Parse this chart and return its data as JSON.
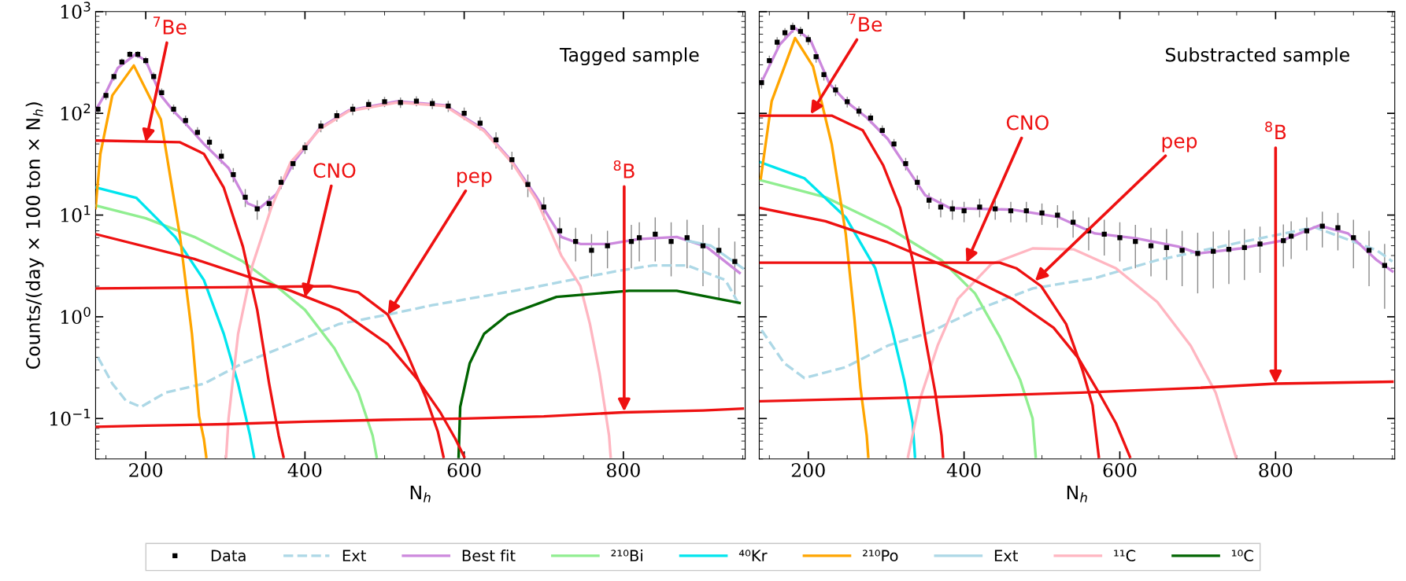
{
  "chart_data": [
    {
      "type": "line",
      "log": "y",
      "xlim": [
        137,
        953
      ],
      "ylim": [
        0.04,
        1000
      ],
      "xticks": [
        200,
        400,
        600,
        800
      ],
      "yticks": [
        {
          "value": 0.1,
          "label": "10$^{−1}$"
        },
        {
          "value": 1,
          "label": "10$^{0}$"
        },
        {
          "value": 10,
          "label": "10$^{1}$"
        },
        {
          "value": 100,
          "label": "10$^{2}$"
        },
        {
          "value": 1000,
          "label": "10$^{3}$"
        }
      ],
      "xlabel": "N$_{h}$",
      "ylabel": "Counts/(day × 100 ton × N$_{h}$)",
      "legend": "bottom",
      "annotations": [
        "Tagged sample",
        {
          "text": "$^{7}$Be",
          "x": 200,
          "y": 52
        },
        {
          "text": "CNO",
          "x": 400,
          "y": 1.55
        },
        {
          "text": "pep",
          "x": 504,
          "y": 1.05
        },
        {
          "text": "$^{8}$B",
          "x": 801,
          "y": 0.117
        }
      ],
      "series": [
        {
          "name": "Data",
          "type": "scatter",
          "marker": "square",
          "color": "#000000",
          "x": [
            140,
            150,
            160,
            170,
            180,
            190,
            200,
            210,
            220,
            235,
            250,
            265,
            280,
            295,
            310,
            325,
            340,
            355,
            370,
            385,
            400,
            420,
            440,
            460,
            480,
            500,
            520,
            540,
            560,
            580,
            600,
            620,
            640,
            660,
            680,
            700,
            720,
            740,
            760,
            780,
            810,
            820,
            840,
            860,
            880,
            900,
            920,
            940
          ],
          "values": [
            110,
            150,
            230,
            320,
            380,
            380,
            330,
            230,
            160,
            110,
            85,
            65,
            52,
            38,
            25,
            15,
            11.5,
            13,
            21,
            32,
            46,
            75,
            95,
            110,
            122,
            130,
            128,
            132,
            125,
            118,
            100,
            80,
            55,
            35,
            20,
            12,
            7,
            5.5,
            4.5,
            5,
            5.5,
            6,
            6.5,
            5.5,
            6,
            5,
            4.5,
            3.5
          ],
          "errors": [
            12,
            15,
            20,
            25,
            30,
            30,
            28,
            22,
            16,
            12,
            10,
            8,
            7,
            6,
            4,
            3,
            2.5,
            2.5,
            3,
            4,
            6,
            10,
            12,
            14,
            15,
            15,
            15,
            15,
            15,
            15,
            14,
            12,
            10,
            7,
            5,
            3,
            2.5,
            2,
            2,
            2,
            2.5,
            2.5,
            3,
            3,
            3,
            3,
            3,
            2
          ]
        },
        {
          "name": "Ext",
          "color": "#add8e6",
          "line_style": "dashed",
          "x": [
            140,
            158,
            175,
            194,
            225,
            273,
            322,
            382,
            443,
            504,
            560,
            625,
            680,
            734,
            790,
            837,
            880,
            928,
            946
          ],
          "values": [
            0.4,
            0.22,
            0.15,
            0.13,
            0.18,
            0.22,
            0.35,
            0.54,
            0.85,
            1.05,
            1.3,
            1.6,
            1.9,
            2.3,
            2.8,
            3.2,
            3.2,
            2.3,
            1.3
          ]
        },
        {
          "name": "Best fit",
          "color": "#cc88dd",
          "x": [
            137,
            150,
            165,
            187,
            200,
            219,
            235,
            249,
            273,
            304,
            328,
            343,
            364,
            388,
            419,
            455,
            516,
            576,
            625,
            661,
            691,
            722,
            746,
            782,
            819,
            867,
            904,
            946
          ],
          "values": [
            107,
            160,
            280,
            380,
            330,
            150,
            105,
            81,
            50,
            29,
            13,
            11.7,
            16,
            35,
            72,
            107,
            131,
            120,
            69,
            33,
            15,
            6.1,
            5.2,
            5.2,
            5.8,
            6.1,
            4.9,
            2.7
          ]
        },
        {
          "name": "²¹⁰Bi",
          "color": "#90ee90",
          "x": [
            137,
            200,
            261,
            322,
            364,
            400,
            437,
            467,
            485,
            490
          ],
          "values": [
            12.4,
            9.3,
            6.1,
            3.5,
            2.0,
            1.17,
            0.49,
            0.18,
            0.068,
            0.042
          ]
        },
        {
          "name": "⁴⁰Kr",
          "color": "#00e5ee",
          "x": [
            137,
            188,
            237,
            273,
            298,
            316,
            331,
            336
          ],
          "values": [
            18.7,
            14.8,
            6.1,
            2.3,
            0.68,
            0.22,
            0.068,
            0.042
          ]
        },
        {
          "name": "²¹⁰Po",
          "color": "#ffa500",
          "x": [
            137,
            143,
            158,
            185,
            219,
            243,
            258,
            267,
            273,
            276
          ],
          "values": [
            11.7,
            40,
            150,
            295,
            87,
            6.2,
            0.68,
            0.105,
            0.063,
            0.042
          ]
        },
        {
          "name": "Ext",
          "color": "#add8e6",
          "x": [
            880,
            910,
            950
          ],
          "values": [
            5.6,
            5.0,
            3.0
          ]
        },
        {
          "name": "¹¹C",
          "color": "#ffb6c1",
          "x": [
            301,
            304,
            316,
            334,
            358,
            382,
            419,
            455,
            516,
            576,
            625,
            661,
            691,
            722,
            746,
            758,
            770,
            782,
            784
          ],
          "values": [
            0.042,
            0.1,
            0.68,
            3.2,
            12,
            33,
            70,
            105,
            128,
            118,
            67,
            32,
            14,
            4,
            2,
            0.85,
            0.28,
            0.068,
            0.042
          ]
        },
        {
          "name": "¹⁰C",
          "color": "#006400",
          "x": [
            593,
            595,
            607,
            625,
            655,
            716,
            807,
            867,
            946
          ],
          "values": [
            0.042,
            0.13,
            0.35,
            0.68,
            1.05,
            1.57,
            1.8,
            1.8,
            1.37
          ]
        },
        {
          "color": "#ee1111",
          "x": [
            137,
            243,
            273,
            298,
            322,
            340,
            355,
            367,
            373
          ],
          "values": [
            54,
            52,
            40,
            18.6,
            4.9,
            1.17,
            0.22,
            0.068,
            0.042
          ]
        },
        {
          "color": "#ee1111",
          "x": [
            137,
            261,
            382,
            443,
            504,
            540,
            570,
            589,
            600
          ],
          "values": [
            6.5,
            3.7,
            1.8,
            1.17,
            0.54,
            0.25,
            0.115,
            0.063,
            0.042
          ]
        },
        {
          "color": "#ee1111",
          "x": [
            137,
            300,
            431,
            467,
            504,
            528,
            552,
            567,
            574
          ],
          "values": [
            1.9,
            1.95,
            2.0,
            1.74,
            1.05,
            0.44,
            0.16,
            0.074,
            0.042
          ]
        },
        {
          "color": "#ee1111",
          "x": [
            137,
            200,
            300,
            400,
            500,
            600,
            700,
            800,
            900,
            950
          ],
          "values": [
            0.083,
            0.085,
            0.088,
            0.093,
            0.097,
            0.1,
            0.105,
            0.115,
            0.12,
            0.125
          ]
        }
      ]
    },
    {
      "type": "line",
      "log": "y",
      "xlim": [
        137,
        953
      ],
      "ylim": [
        0.04,
        1000
      ],
      "xticks": [
        200,
        400,
        600,
        800
      ],
      "yticks": [
        0.1,
        1,
        10,
        100,
        1000
      ],
      "tick_labels": "x",
      "xlabel": "N$_{h}$",
      "annotations": [
        "Substracted sample",
        {
          "text": "$^{7}$Be",
          "x": 203,
          "y": 98
        },
        {
          "text": "CNO",
          "x": 403,
          "y": 3.4
        },
        {
          "text": "pep",
          "x": 491,
          "y": 2.25
        },
        {
          "text": "$^{8}$B",
          "x": 800,
          "y": 0.22
        }
      ],
      "series": [
        {
          "type": "scatter",
          "marker": "square",
          "color": "#000000",
          "x": [
            140,
            150,
            160,
            170,
            180,
            190,
            200,
            210,
            220,
            235,
            250,
            265,
            280,
            295,
            310,
            325,
            340,
            355,
            370,
            385,
            400,
            420,
            440,
            460,
            480,
            500,
            520,
            540,
            560,
            580,
            600,
            620,
            640,
            660,
            680,
            700,
            720,
            740,
            760,
            780,
            810,
            820,
            840,
            860,
            880,
            900,
            920,
            940
          ],
          "values": [
            200,
            330,
            500,
            620,
            700,
            640,
            530,
            360,
            240,
            170,
            130,
            105,
            90,
            68,
            50,
            32,
            21,
            14,
            12,
            11.5,
            11,
            12,
            11.5,
            11,
            11,
            10.5,
            10,
            8.5,
            7,
            6.5,
            6,
            5.5,
            5,
            4.8,
            4.5,
            4.2,
            4.4,
            4.6,
            4.8,
            5.2,
            5.6,
            6.2,
            7,
            7.8,
            7.5,
            6,
            4.5,
            3.2
          ],
          "errors": [
            25,
            40,
            60,
            70,
            80,
            70,
            60,
            45,
            30,
            22,
            16,
            12,
            10,
            8,
            6,
            4.5,
            3.5,
            2.5,
            2.5,
            2.5,
            2.5,
            2.5,
            2.5,
            2.5,
            2.5,
            2.5,
            2.5,
            2.5,
            2.5,
            2.5,
            2.5,
            2.5,
            2.5,
            2.5,
            2.5,
            2.5,
            2.5,
            2.5,
            2.5,
            2.5,
            2.5,
            2.5,
            2.5,
            3,
            3,
            3,
            2.5,
            2
          ]
        },
        {
          "color": "#add8e6",
          "line_style": "dashed",
          "x": [
            140,
            169,
            195,
            248,
            302,
            355,
            414,
            488,
            568,
            648,
            755,
            850,
            930,
            950
          ],
          "values": [
            0.74,
            0.35,
            0.25,
            0.32,
            0.52,
            0.7,
            1.15,
            1.9,
            2.4,
            3.6,
            5.4,
            7.6,
            4.5,
            3.5
          ]
        },
        {
          "color": "#cc88dd",
          "x": [
            139,
            163,
            183,
            203,
            227,
            248,
            275,
            302,
            328,
            350,
            382,
            462,
            520,
            568,
            621,
            675,
            701,
            755,
            808,
            856,
            893,
            930,
            950
          ],
          "values": [
            196,
            470,
            690,
            520,
            196,
            132,
            91,
            56,
            28,
            15.7,
            11.7,
            11.3,
            9.6,
            6.6,
            5.9,
            4.9,
            4.2,
            4.7,
            5.6,
            7.9,
            6.6,
            3.6,
            2.8
          ]
        },
        {
          "color": "#90ee90",
          "x": [
            139,
            222,
            302,
            371,
            414,
            446,
            472,
            488,
            492
          ],
          "values": [
            22,
            15,
            7.6,
            3.6,
            1.7,
            0.63,
            0.24,
            0.1,
            0.042
          ]
        },
        {
          "color": "#00e5ee",
          "x": [
            139,
            195,
            248,
            286,
            307,
            323,
            334,
            337
          ],
          "values": [
            33,
            23,
            9.5,
            3.0,
            0.78,
            0.24,
            0.09,
            0.042
          ]
        },
        {
          "color": "#ffa500",
          "x": [
            139,
            153,
            183,
            206,
            230,
            248,
            259,
            267,
            275,
            277
          ],
          "values": [
            23,
            132,
            550,
            290,
            50,
            6.6,
            1.0,
            0.2,
            0.068,
            0.042
          ]
        },
        {
          "color": "#ffb6c1",
          "x": [
            328,
            344,
            366,
            392,
            435,
            488,
            541,
            595,
            648,
            691,
            723,
            749
          ],
          "values": [
            0.042,
            0.16,
            0.52,
            1.5,
            3.3,
            4.7,
            4.6,
            3.0,
            1.4,
            0.52,
            0.18,
            0.042
          ]
        },
        {
          "color": "#ee1111",
          "x": [
            139,
            230,
            270,
            296,
            318,
            334,
            350,
            363,
            371,
            373
          ],
          "values": [
            95,
            95,
            68,
            31,
            11.7,
            3.6,
            0.63,
            0.18,
            0.068,
            0.042
          ]
        },
        {
          "color": "#ee1111",
          "x": [
            139,
            222,
            302,
            382,
            462,
            515,
            547,
            573,
            595,
            613
          ],
          "values": [
            11.7,
            8.7,
            5.4,
            3.0,
            1.5,
            0.78,
            0.39,
            0.18,
            0.09,
            0.042
          ]
        },
        {
          "color": "#ee1111",
          "x": [
            139,
            300,
            446,
            467,
            499,
            531,
            552,
            565,
            573
          ],
          "values": [
            3.4,
            3.4,
            3.4,
            3.0,
            2.0,
            0.85,
            0.3,
            0.135,
            0.042
          ]
        },
        {
          "color": "#ee1111",
          "x": [
            139,
            250,
            400,
            550,
            700,
            800,
            950
          ],
          "values": [
            0.148,
            0.155,
            0.165,
            0.18,
            0.2,
            0.22,
            0.23
          ]
        }
      ]
    }
  ]
}
